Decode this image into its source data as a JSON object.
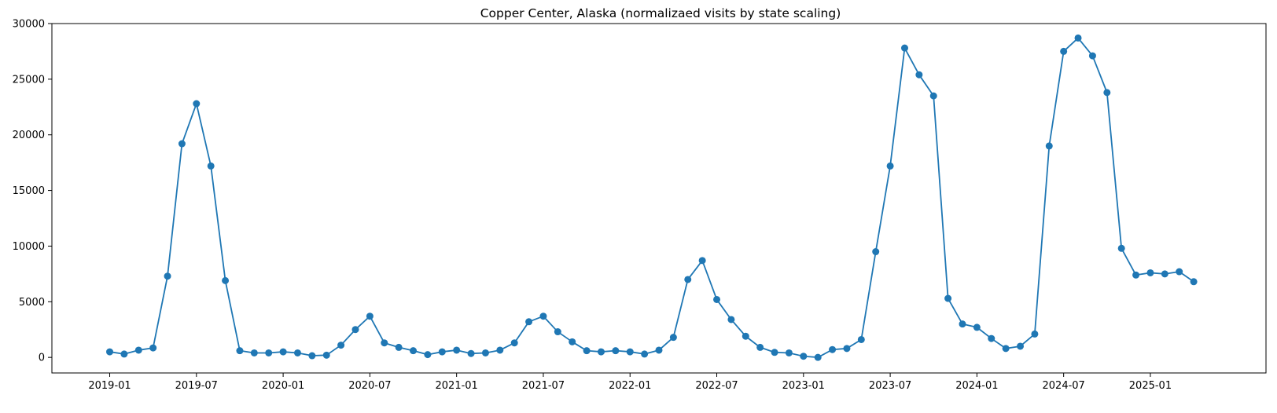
{
  "chart_data": {
    "type": "line",
    "title": "Copper Center, Alaska (normalizaed visits by state scaling)",
    "xlabel": "",
    "ylabel": "",
    "x_start": "2019-01",
    "x": [
      "2019-01",
      "2019-02",
      "2019-03",
      "2019-04",
      "2019-05",
      "2019-06",
      "2019-07",
      "2019-08",
      "2019-09",
      "2019-10",
      "2019-11",
      "2019-12",
      "2020-01",
      "2020-02",
      "2020-03",
      "2020-04",
      "2020-05",
      "2020-06",
      "2020-07",
      "2020-08",
      "2020-09",
      "2020-10",
      "2020-11",
      "2020-12",
      "2021-01",
      "2021-02",
      "2021-03",
      "2021-04",
      "2021-05",
      "2021-06",
      "2021-07",
      "2021-08",
      "2021-09",
      "2021-10",
      "2021-11",
      "2021-12",
      "2022-01",
      "2022-02",
      "2022-03",
      "2022-04",
      "2022-05",
      "2022-06",
      "2022-07",
      "2022-08",
      "2022-09",
      "2022-10",
      "2022-11",
      "2022-12",
      "2023-01",
      "2023-02",
      "2023-03",
      "2023-04",
      "2023-05",
      "2023-06",
      "2023-07",
      "2023-08",
      "2023-09",
      "2023-10",
      "2023-11",
      "2023-12",
      "2024-01",
      "2024-02",
      "2024-03",
      "2024-04",
      "2024-05",
      "2024-06",
      "2024-07",
      "2024-08",
      "2024-09",
      "2024-10",
      "2024-11",
      "2024-12",
      "2025-01",
      "2025-02",
      "2025-03",
      "2025-04"
    ],
    "series": [
      {
        "color": "#1f77b4",
        "values": [
          500,
          300,
          650,
          850,
          7300,
          19200,
          22800,
          17200,
          6900,
          600,
          400,
          400,
          500,
          400,
          150,
          200,
          1100,
          2500,
          3700,
          1300,
          900,
          600,
          250,
          500,
          650,
          350,
          400,
          650,
          1300,
          3200,
          3700,
          2300,
          1400,
          600,
          500,
          600,
          500,
          300,
          650,
          1800,
          7000,
          8700,
          5200,
          3400,
          1900,
          900,
          450,
          400,
          100,
          0,
          700,
          800,
          1600,
          9500,
          17200,
          27800,
          25400,
          23500,
          5300,
          3000,
          2700,
          1700,
          800,
          1000,
          2100,
          19000,
          27500,
          28700,
          27100,
          23800,
          9800,
          7400,
          7600,
          7500,
          7700,
          6800
        ]
      }
    ],
    "x_tick_labels": [
      "2019-01",
      "2019-07",
      "2020-01",
      "2020-07",
      "2021-01",
      "2021-07",
      "2022-01",
      "2022-07",
      "2023-01",
      "2023-07",
      "2024-01",
      "2024-07",
      "2025-01"
    ],
    "y_ticks": [
      0,
      5000,
      10000,
      15000,
      20000,
      25000,
      30000
    ],
    "y_tick_labels": [
      "0",
      "5000",
      "10000",
      "15000",
      "20000",
      "25000",
      "30000"
    ],
    "ylim": [
      -1400,
      30000
    ],
    "xlim": [
      "2018-09",
      "2025-09"
    ],
    "grid": false,
    "legend": false
  }
}
